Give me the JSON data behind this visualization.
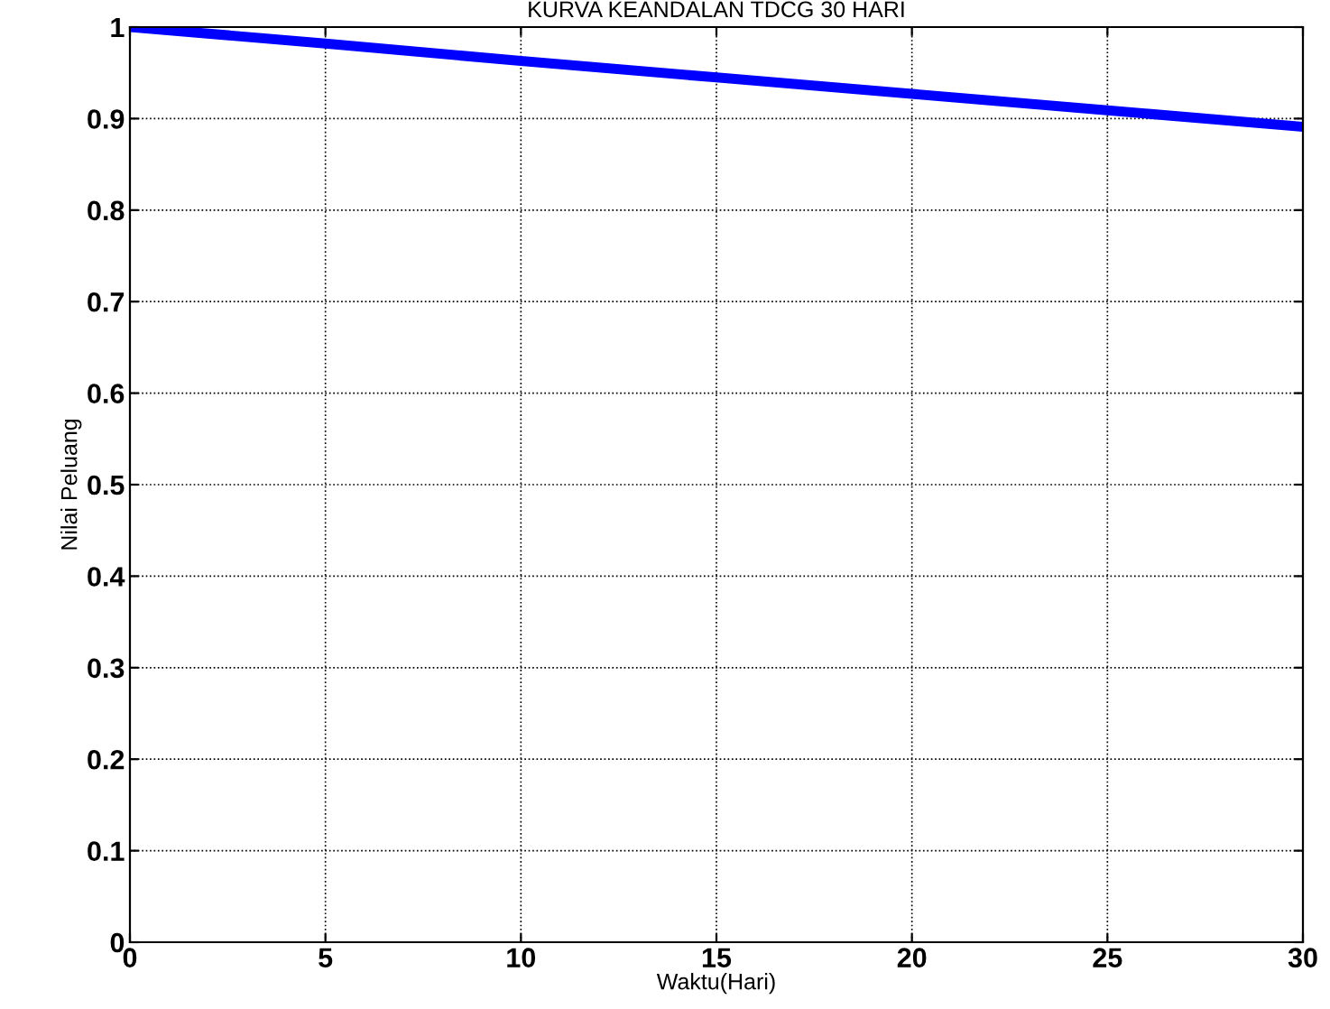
{
  "chart_data": {
    "type": "line",
    "title": "KURVA KEANDALAN TDCG 30 HARI",
    "xlabel": "Waktu(Hari)",
    "ylabel": "Nilai Peluang",
    "x": [
      0,
      5,
      10,
      15,
      20,
      25,
      30
    ],
    "series": [
      {
        "color": "#0000ff",
        "values": [
          1.0,
          0.982,
          0.963,
          0.945,
          0.927,
          0.909,
          0.891
        ]
      }
    ],
    "xlim": [
      0,
      30
    ],
    "ylim": [
      0,
      1
    ],
    "xticks": [
      0,
      5,
      10,
      15,
      20,
      25,
      30
    ],
    "yticks": [
      0,
      0.1,
      0.2,
      0.3,
      0.4,
      0.5,
      0.6,
      0.7,
      0.8,
      0.9,
      1
    ],
    "grid": true,
    "line_style": "solid",
    "marker": "none"
  }
}
